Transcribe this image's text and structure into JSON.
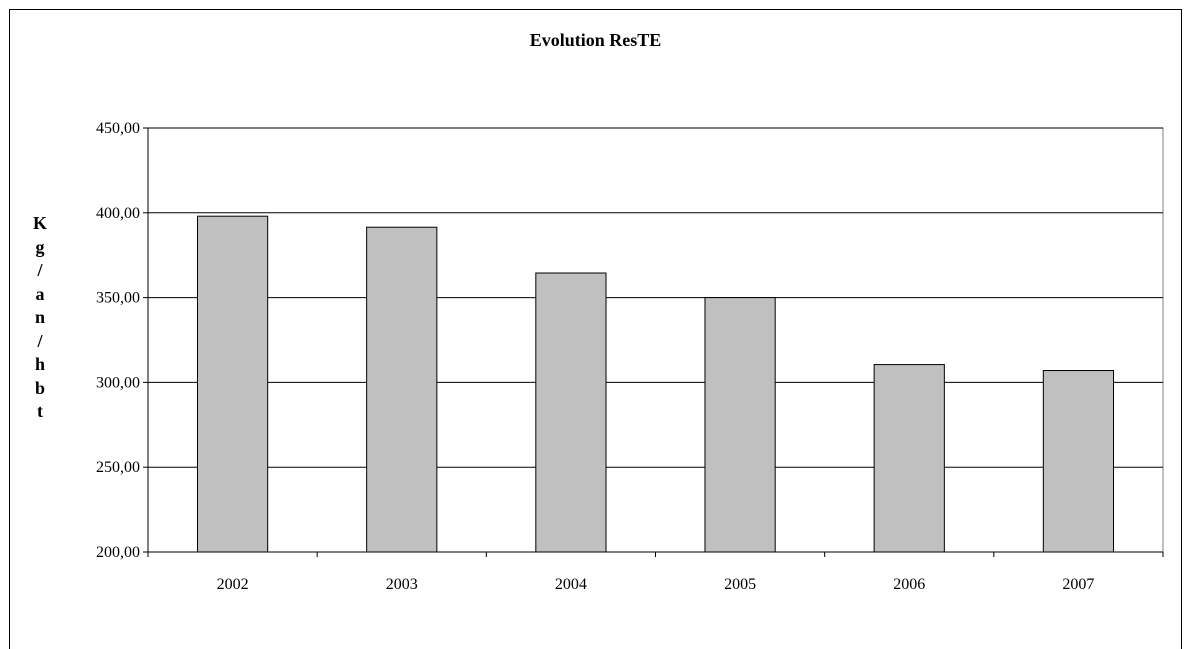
{
  "chart_data": {
    "type": "bar",
    "title": "Evolution ResTE",
    "xlabel": "",
    "ylabel": "Kg/an/hbt",
    "categories": [
      "2002",
      "2003",
      "2004",
      "2005",
      "2006",
      "2007"
    ],
    "values": [
      398.0,
      391.5,
      364.5,
      350.0,
      310.5,
      307.0
    ],
    "ylim": [
      200,
      450
    ],
    "yticks": [
      200,
      250,
      300,
      350,
      400,
      450
    ],
    "ytick_labels": [
      "200,00",
      "250,00",
      "300,00",
      "350,00",
      "400,00",
      "450,00"
    ],
    "grid": "horizontal",
    "bar_color": "#c0c0c0",
    "bar_edge_color": "#000000",
    "legend": "none"
  }
}
